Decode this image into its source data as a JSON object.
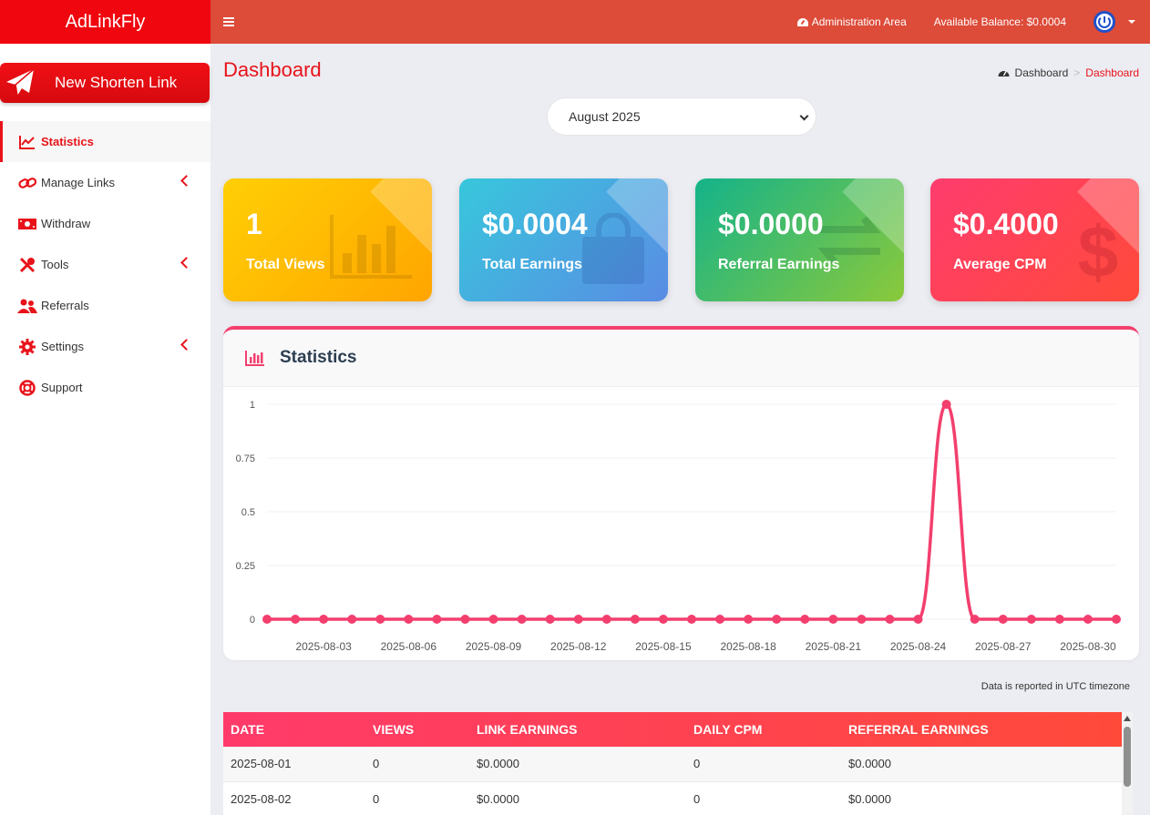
{
  "brand": {
    "name": "AdLinkFly"
  },
  "topbar": {
    "admin_link": "Administration Area",
    "balance": "Available Balance: $0.0004"
  },
  "sidebar": {
    "new_link_label": "New Shorten Link",
    "items": [
      {
        "label": "Statistics",
        "icon": "line-chart-icon",
        "active": true,
        "has_children": false
      },
      {
        "label": "Manage Links",
        "icon": "link-icon",
        "active": false,
        "has_children": true
      },
      {
        "label": "Withdraw",
        "icon": "money-icon",
        "active": false,
        "has_children": false
      },
      {
        "label": "Tools",
        "icon": "tools-icon",
        "active": false,
        "has_children": true
      },
      {
        "label": "Referrals",
        "icon": "users-icon",
        "active": false,
        "has_children": false
      },
      {
        "label": "Settings",
        "icon": "gear-icon",
        "active": false,
        "has_children": true
      },
      {
        "label": "Support",
        "icon": "life-ring-icon",
        "active": false,
        "has_children": false
      }
    ]
  },
  "page": {
    "title": "Dashboard",
    "breadcrumb": [
      "Dashboard",
      "Dashboard"
    ],
    "month_selected": "August 2025"
  },
  "cards": [
    {
      "value": "1",
      "label": "Total Views",
      "icon": "bar-chart-icon"
    },
    {
      "value": "$0.0004",
      "label": "Total Earnings",
      "icon": "shopping-bag-icon"
    },
    {
      "value": "$0.0000",
      "label": "Referral Earnings",
      "icon": "exchange-icon"
    },
    {
      "value": "$0.4000",
      "label": "Average CPM",
      "icon": "dollar-icon"
    }
  ],
  "stats_panel": {
    "title": "Statistics"
  },
  "chart_data": {
    "type": "line",
    "x": [
      "2025-08-01",
      "2025-08-02",
      "2025-08-03",
      "2025-08-04",
      "2025-08-05",
      "2025-08-06",
      "2025-08-07",
      "2025-08-08",
      "2025-08-09",
      "2025-08-10",
      "2025-08-11",
      "2025-08-12",
      "2025-08-13",
      "2025-08-14",
      "2025-08-15",
      "2025-08-16",
      "2025-08-17",
      "2025-08-18",
      "2025-08-19",
      "2025-08-20",
      "2025-08-21",
      "2025-08-22",
      "2025-08-23",
      "2025-08-24",
      "2025-08-25",
      "2025-08-26",
      "2025-08-27",
      "2025-08-28",
      "2025-08-29",
      "2025-08-30",
      "2025-08-31"
    ],
    "series": [
      {
        "values": [
          0,
          0,
          0,
          0,
          0,
          0,
          0,
          0,
          0,
          0,
          0,
          0,
          0,
          0,
          0,
          0,
          0,
          0,
          0,
          0,
          0,
          0,
          0,
          0,
          1,
          0,
          0,
          0,
          0,
          0,
          0
        ],
        "color": "#f33f6e"
      }
    ],
    "x_tick_labels": [
      "2025-08-03",
      "2025-08-06",
      "2025-08-09",
      "2025-08-12",
      "2025-08-15",
      "2025-08-18",
      "2025-08-21",
      "2025-08-24",
      "2025-08-27",
      "2025-08-30"
    ],
    "y_ticks": [
      "0",
      "0.25",
      "0.5",
      "0.75",
      "1"
    ],
    "ylim": [
      0,
      1
    ],
    "grid": true,
    "legend": "none",
    "title": "",
    "xlabel": "",
    "ylabel": ""
  },
  "utc_note": "Data is reported in UTC timezone",
  "table": {
    "headers": [
      "DATE",
      "VIEWS",
      "LINK EARNINGS",
      "DAILY CPM",
      "REFERRAL EARNINGS"
    ],
    "rows": [
      [
        "2025-08-01",
        "0",
        "$0.0000",
        "0",
        "$0.0000"
      ],
      [
        "2025-08-02",
        "0",
        "$0.0000",
        "0",
        "$0.0000"
      ]
    ]
  },
  "colors": {
    "brand_red": "#f0060e",
    "topbar": "#dd4b39",
    "accent": "#e8131a",
    "line": "#f33f6e"
  }
}
